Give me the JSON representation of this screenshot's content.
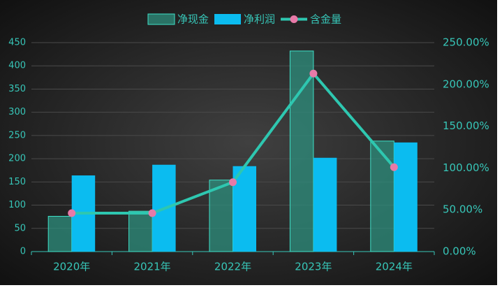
{
  "chart_data": {
    "type": "bar-line",
    "categories": [
      "2020年",
      "2021年",
      "2022年",
      "2023年",
      "2024年"
    ],
    "series": [
      {
        "name": "净现金",
        "type": "bar",
        "color": "#2e8f7e",
        "values": [
          76,
          87,
          154,
          432,
          238
        ]
      },
      {
        "name": "净利润",
        "type": "bar",
        "color": "#0bbcf0",
        "values": [
          164,
          187,
          184,
          202,
          235
        ]
      },
      {
        "name": "含金量",
        "type": "line",
        "axis": "y2",
        "color": "#2ec7b0",
        "marker_color": "#e87aa8",
        "values": [
          46,
          46,
          83,
          213,
          101
        ]
      }
    ],
    "ylim": [
      0,
      450
    ],
    "yticks": [
      0,
      50,
      100,
      150,
      200,
      250,
      300,
      350,
      400,
      450
    ],
    "y2lim": [
      0,
      250
    ],
    "y2ticks": [
      {
        "value": 0,
        "label": "0.00%"
      },
      {
        "value": 50,
        "label": "50.00%"
      },
      {
        "value": 100,
        "label": "100.00%"
      },
      {
        "value": 150,
        "label": "150.00%"
      },
      {
        "value": 200,
        "label": "200.00%"
      },
      {
        "value": 250,
        "label": "250.00%"
      }
    ],
    "grid": true
  }
}
